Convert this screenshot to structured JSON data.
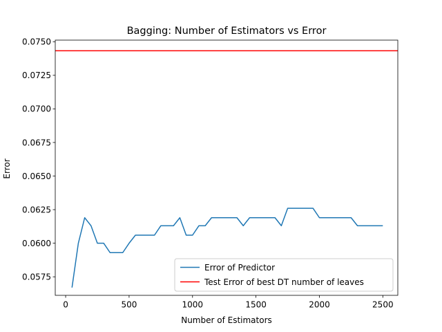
{
  "chart_data": {
    "type": "line",
    "title": "Bagging: Number of Estimators vs Error",
    "xlabel": "Number of Estimators",
    "ylabel": "Error",
    "xlim": [
      -82,
      2618
    ],
    "ylim": [
      0.05612,
      0.07512
    ],
    "xticks": [
      0,
      500,
      1000,
      1500,
      2000,
      2500
    ],
    "xtick_labels": [
      "0",
      "500",
      "1000",
      "1500",
      "2000",
      "2500"
    ],
    "yticks": [
      0.0575,
      0.06,
      0.0625,
      0.065,
      0.0675,
      0.07,
      0.0725,
      0.075
    ],
    "ytick_labels": [
      "0.0575",
      "0.0600",
      "0.0625",
      "0.0650",
      "0.0675",
      "0.0700",
      "0.0725",
      "0.0750"
    ],
    "grid": false,
    "legend_position": "lower-right",
    "series": [
      {
        "name": "Error of Predictor",
        "color": "#1f77b4",
        "x": [
          50,
          100,
          150,
          200,
          250,
          300,
          350,
          400,
          450,
          500,
          550,
          600,
          650,
          700,
          750,
          800,
          850,
          900,
          950,
          1000,
          1050,
          1100,
          1150,
          1200,
          1250,
          1300,
          1350,
          1400,
          1450,
          1500,
          1550,
          1600,
          1650,
          1700,
          1750,
          1800,
          1850,
          1900,
          1950,
          2000,
          2050,
          2100,
          2150,
          2200,
          2250,
          2300,
          2350,
          2400,
          2450,
          2500
        ],
        "y": [
          0.0567,
          0.06,
          0.0619,
          0.0613,
          0.06,
          0.06,
          0.0593,
          0.0593,
          0.0593,
          0.06,
          0.0606,
          0.0606,
          0.0606,
          0.0606,
          0.0613,
          0.0613,
          0.0613,
          0.0619,
          0.0606,
          0.0606,
          0.0613,
          0.0613,
          0.0619,
          0.0619,
          0.0619,
          0.0619,
          0.0619,
          0.0613,
          0.0619,
          0.0619,
          0.0619,
          0.0619,
          0.0619,
          0.0613,
          0.0626,
          0.0626,
          0.0626,
          0.0626,
          0.0626,
          0.0619,
          0.0619,
          0.0619,
          0.0619,
          0.0619,
          0.0619,
          0.0613,
          0.0613,
          0.0613,
          0.0613,
          0.0613
        ]
      },
      {
        "name": "Test Error of best DT number of leaves",
        "color": "#ff0000",
        "hline": 0.07433
      }
    ]
  }
}
